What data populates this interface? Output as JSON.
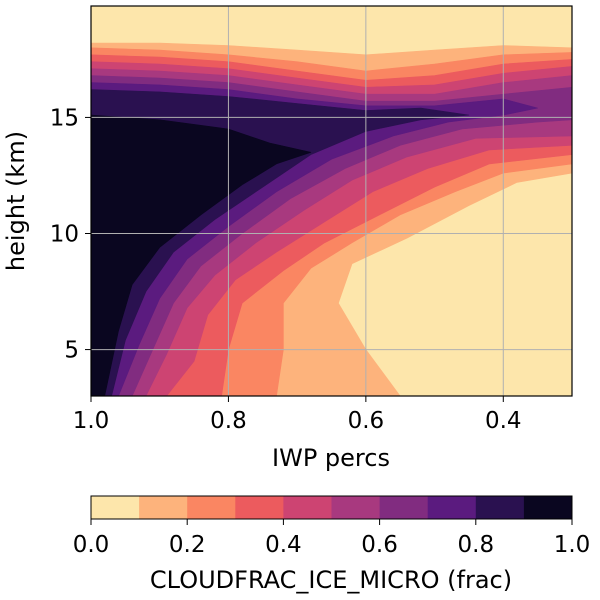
{
  "chart_data": {
    "type": "heatmap",
    "xlabel": "IWP percs",
    "ylabel": "height (km)",
    "xlim": [
      1.0,
      0.3
    ],
    "ylim": [
      3.0,
      19.8
    ],
    "x_ticks": [
      1.0,
      0.8,
      0.6,
      0.4
    ],
    "x_tick_labels": [
      "1.0",
      "0.8",
      "0.6",
      "0.4"
    ],
    "y_ticks": [
      5,
      10,
      15
    ],
    "y_tick_labels": [
      "5",
      "10",
      "15"
    ],
    "grid": true,
    "colorbar": {
      "label": "CLOUDFRAC_ICE_MICRO (frac)",
      "orientation": "horizontal",
      "placement": "bottom",
      "range": [
        0.0,
        1.0
      ],
      "ticks": [
        "0.0",
        "0.2",
        "0.4",
        "0.6",
        "0.8",
        "1.0"
      ],
      "levels": [
        0.0,
        0.1,
        0.2,
        0.3,
        0.4,
        0.5,
        0.6,
        0.7,
        0.8,
        0.9,
        1.0
      ],
      "colors": [
        "#fde6ab",
        "#fdb37c",
        "#fa8662",
        "#ec5b5e",
        "#cd4472",
        "#a8397f",
        "#812c80",
        "#5b1b7f",
        "#2a1150",
        "#0a0620"
      ],
      "colormap": "magma_r"
    },
    "contour_bands": [
      {
        "level_min": 0.1,
        "points": [
          [
            1.0,
            3.0
          ],
          [
            0.8,
            3.0
          ],
          [
            0.7,
            3.0
          ],
          [
            0.6,
            3.0
          ],
          [
            0.55,
            3.0
          ],
          [
            0.6,
            5.0
          ],
          [
            0.64,
            7.0
          ],
          [
            0.62,
            8.7
          ],
          [
            0.54,
            9.8
          ],
          [
            0.45,
            11.2
          ],
          [
            0.38,
            12.2
          ],
          [
            0.3,
            12.6
          ],
          [
            0.3,
            18.0
          ],
          [
            0.4,
            18.1
          ],
          [
            0.5,
            17.9
          ],
          [
            0.6,
            17.7
          ],
          [
            0.7,
            17.9
          ],
          [
            0.8,
            18.1
          ],
          [
            0.9,
            18.2
          ],
          [
            1.0,
            18.2
          ]
        ]
      },
      {
        "level_min": 0.2,
        "points": [
          [
            1.0,
            3.0
          ],
          [
            0.8,
            3.0
          ],
          [
            0.73,
            3.0
          ],
          [
            0.72,
            5.0
          ],
          [
            0.72,
            7.0
          ],
          [
            0.68,
            8.5
          ],
          [
            0.62,
            9.6
          ],
          [
            0.55,
            10.8
          ],
          [
            0.47,
            11.8
          ],
          [
            0.4,
            12.6
          ],
          [
            0.3,
            13.0
          ],
          [
            0.3,
            17.8
          ],
          [
            0.4,
            17.7
          ],
          [
            0.5,
            17.3
          ],
          [
            0.6,
            17.0
          ],
          [
            0.7,
            17.4
          ],
          [
            0.8,
            17.7
          ],
          [
            0.9,
            17.9
          ],
          [
            1.0,
            18.0
          ]
        ]
      },
      {
        "level_min": 0.3,
        "points": [
          [
            1.0,
            3.0
          ],
          [
            0.86,
            3.0
          ],
          [
            0.81,
            3.0
          ],
          [
            0.8,
            5.0
          ],
          [
            0.78,
            7.0
          ],
          [
            0.72,
            8.4
          ],
          [
            0.66,
            9.6
          ],
          [
            0.58,
            10.8
          ],
          [
            0.5,
            12.0
          ],
          [
            0.42,
            13.0
          ],
          [
            0.3,
            13.4
          ],
          [
            0.3,
            17.5
          ],
          [
            0.4,
            17.3
          ],
          [
            0.5,
            16.8
          ],
          [
            0.6,
            16.6
          ],
          [
            0.7,
            17.0
          ],
          [
            0.8,
            17.4
          ],
          [
            0.9,
            17.6
          ],
          [
            1.0,
            17.7
          ]
        ]
      },
      {
        "level_min": 0.4,
        "points": [
          [
            1.0,
            3.0
          ],
          [
            0.89,
            3.0
          ],
          [
            0.85,
            4.5
          ],
          [
            0.83,
            6.5
          ],
          [
            0.79,
            8.0
          ],
          [
            0.73,
            9.2
          ],
          [
            0.66,
            10.5
          ],
          [
            0.59,
            11.8
          ],
          [
            0.51,
            12.8
          ],
          [
            0.42,
            13.6
          ],
          [
            0.3,
            13.8
          ],
          [
            0.3,
            17.2
          ],
          [
            0.4,
            16.9
          ],
          [
            0.5,
            16.4
          ],
          [
            0.6,
            16.3
          ],
          [
            0.7,
            16.7
          ],
          [
            0.8,
            17.1
          ],
          [
            0.9,
            17.3
          ],
          [
            1.0,
            17.4
          ]
        ]
      },
      {
        "level_min": 0.5,
        "points": [
          [
            1.0,
            3.0
          ],
          [
            0.92,
            3.0
          ],
          [
            0.89,
            4.8
          ],
          [
            0.86,
            6.8
          ],
          [
            0.82,
            8.2
          ],
          [
            0.76,
            9.6
          ],
          [
            0.69,
            11.0
          ],
          [
            0.62,
            12.3
          ],
          [
            0.54,
            13.3
          ],
          [
            0.44,
            14.1
          ],
          [
            0.3,
            14.2
          ],
          [
            0.3,
            16.8
          ],
          [
            0.4,
            16.5
          ],
          [
            0.5,
            16.0
          ],
          [
            0.6,
            16.0
          ],
          [
            0.7,
            16.4
          ],
          [
            0.8,
            16.8
          ],
          [
            0.9,
            17.0
          ],
          [
            1.0,
            17.1
          ]
        ]
      },
      {
        "level_min": 0.6,
        "points": [
          [
            1.0,
            3.0
          ],
          [
            0.94,
            3.0
          ],
          [
            0.91,
            5.0
          ],
          [
            0.88,
            7.0
          ],
          [
            0.84,
            8.6
          ],
          [
            0.78,
            10.0
          ],
          [
            0.71,
            11.5
          ],
          [
            0.63,
            12.8
          ],
          [
            0.55,
            13.8
          ],
          [
            0.46,
            14.5
          ],
          [
            0.35,
            14.8
          ],
          [
            0.3,
            14.9
          ],
          [
            0.3,
            16.3
          ],
          [
            0.4,
            16.0
          ],
          [
            0.5,
            15.7
          ],
          [
            0.6,
            15.7
          ],
          [
            0.7,
            16.1
          ],
          [
            0.8,
            16.5
          ],
          [
            0.9,
            16.7
          ],
          [
            1.0,
            16.8
          ]
        ]
      },
      {
        "level_min": 0.7,
        "points": [
          [
            1.0,
            3.0
          ],
          [
            0.96,
            3.0
          ],
          [
            0.93,
            5.2
          ],
          [
            0.9,
            7.2
          ],
          [
            0.86,
            8.9
          ],
          [
            0.8,
            10.3
          ],
          [
            0.73,
            11.8
          ],
          [
            0.65,
            13.2
          ],
          [
            0.56,
            14.2
          ],
          [
            0.48,
            14.8
          ],
          [
            0.4,
            15.1
          ],
          [
            0.35,
            15.4
          ],
          [
            0.4,
            15.8
          ],
          [
            0.5,
            15.5
          ],
          [
            0.6,
            15.5
          ],
          [
            0.7,
            15.8
          ],
          [
            0.8,
            16.2
          ],
          [
            0.9,
            16.4
          ],
          [
            1.0,
            16.5
          ]
        ]
      },
      {
        "level_min": 0.8,
        "points": [
          [
            1.0,
            3.0
          ],
          [
            0.97,
            3.0
          ],
          [
            0.95,
            5.4
          ],
          [
            0.92,
            7.5
          ],
          [
            0.88,
            9.2
          ],
          [
            0.82,
            10.6
          ],
          [
            0.75,
            12.0
          ],
          [
            0.68,
            13.4
          ],
          [
            0.6,
            14.4
          ],
          [
            0.52,
            14.9
          ],
          [
            0.45,
            15.1
          ],
          [
            0.52,
            15.4
          ],
          [
            0.6,
            15.3
          ],
          [
            0.7,
            15.6
          ],
          [
            0.8,
            15.9
          ],
          [
            0.9,
            16.1
          ],
          [
            1.0,
            16.2
          ]
        ]
      },
      {
        "level_min": 0.9,
        "points": [
          [
            1.0,
            3.0
          ],
          [
            0.98,
            3.0
          ],
          [
            0.96,
            5.8
          ],
          [
            0.94,
            7.8
          ],
          [
            0.9,
            9.4
          ],
          [
            0.84,
            10.8
          ],
          [
            0.78,
            12.1
          ],
          [
            0.73,
            13.0
          ],
          [
            0.68,
            13.5
          ],
          [
            0.74,
            13.9
          ],
          [
            0.8,
            14.5
          ],
          [
            0.9,
            14.9
          ],
          [
            1.0,
            15.1
          ]
        ]
      }
    ]
  }
}
